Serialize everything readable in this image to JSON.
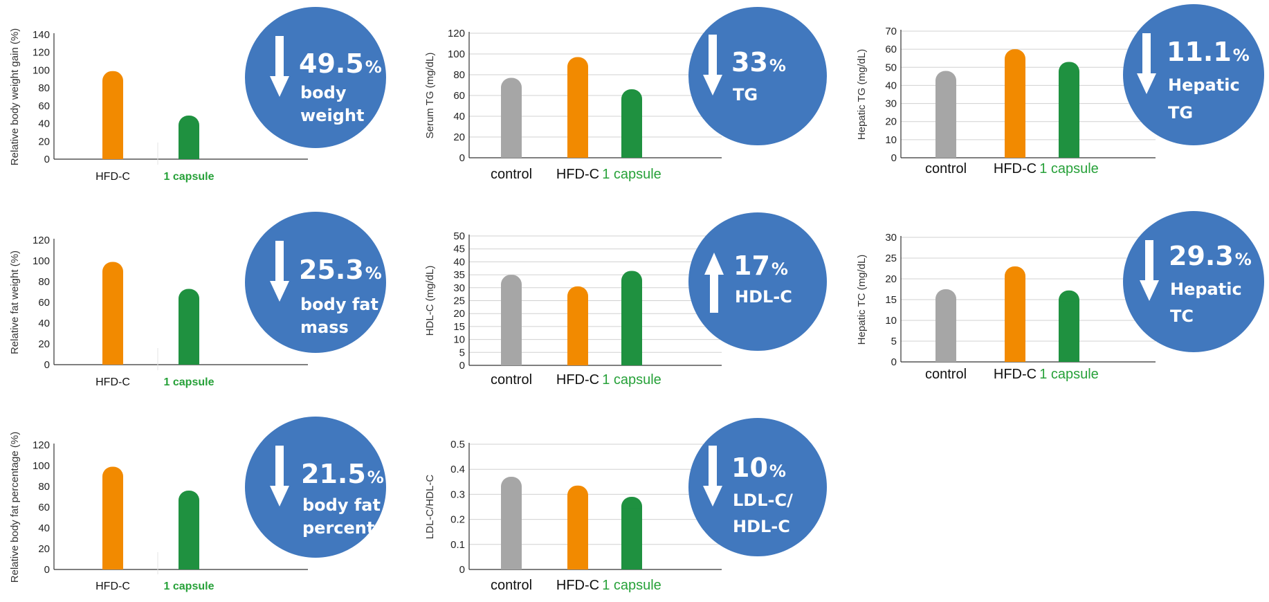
{
  "chart_data": [
    {
      "type": "bar",
      "categories": [
        "HFD-C",
        "1 capsule"
      ],
      "values": [
        99,
        49
      ],
      "ylabel": "Relative body weight gain (%)",
      "ylim": [
        0,
        140
      ],
      "yticks": [
        0,
        20,
        40,
        60,
        80,
        100,
        120,
        140
      ],
      "grid": false,
      "colors": [
        "#f28a00",
        "#1f9140"
      ],
      "badge": {
        "direction": "down",
        "value": "49.5",
        "unit": "%",
        "label": [
          "body",
          "weight"
        ]
      }
    },
    {
      "type": "bar",
      "categories": [
        "control",
        "HFD-C",
        "1 capsule"
      ],
      "values": [
        77,
        97,
        66
      ],
      "ylabel": "Serum TG (mg/dL)",
      "ylim": [
        0,
        120
      ],
      "yticks": [
        0,
        20,
        40,
        60,
        80,
        100,
        120
      ],
      "grid": true,
      "colors": [
        "#a6a6a6",
        "#f28a00",
        "#1f9140"
      ],
      "badge": {
        "direction": "down",
        "value": "33",
        "unit": "%",
        "label": [
          "TG"
        ]
      }
    },
    {
      "type": "bar",
      "categories": [
        "control",
        "HFD-C",
        "1 capsule"
      ],
      "values": [
        48,
        60,
        53
      ],
      "ylabel": "Hepatic TG (mg/dL)",
      "ylim": [
        0,
        70
      ],
      "yticks": [
        0,
        10,
        20,
        30,
        40,
        50,
        60,
        70
      ],
      "grid": true,
      "colors": [
        "#a6a6a6",
        "#f28a00",
        "#1f9140"
      ],
      "badge": {
        "direction": "down",
        "value": "11.1",
        "unit": "%",
        "label": [
          "Hepatic",
          "TG"
        ]
      }
    },
    {
      "type": "bar",
      "categories": [
        "HFD-C",
        "1 capsule"
      ],
      "values": [
        99,
        73
      ],
      "ylabel": "Relative fat weight (%)",
      "ylim": [
        0,
        120
      ],
      "yticks": [
        0,
        20,
        40,
        60,
        80,
        100,
        120
      ],
      "grid": false,
      "colors": [
        "#f28a00",
        "#1f9140"
      ],
      "badge": {
        "direction": "down",
        "value": "25.3",
        "unit": "%",
        "label": [
          "body fat",
          "mass"
        ]
      }
    },
    {
      "type": "bar",
      "categories": [
        "control",
        "HFD-C",
        "1 capsule"
      ],
      "values": [
        35,
        30.5,
        36.5
      ],
      "ylabel": "HDL-C (mg/dL)",
      "ylim": [
        0,
        50
      ],
      "yticks": [
        0,
        5,
        10,
        15,
        20,
        25,
        30,
        35,
        40,
        45,
        50
      ],
      "grid": true,
      "colors": [
        "#a6a6a6",
        "#f28a00",
        "#1f9140"
      ],
      "badge": {
        "direction": "up",
        "value": "17",
        "unit": "%",
        "label": [
          "HDL-C"
        ]
      }
    },
    {
      "type": "bar",
      "categories": [
        "control",
        "HFD-C",
        "1 capsule"
      ],
      "values": [
        17.5,
        23,
        17.2
      ],
      "ylabel": "Hepatic TC (mg/dL)",
      "ylim": [
        0,
        30
      ],
      "yticks": [
        0,
        5,
        10,
        15,
        20,
        25,
        30
      ],
      "grid": true,
      "colors": [
        "#a6a6a6",
        "#f28a00",
        "#1f9140"
      ],
      "badge": {
        "direction": "down",
        "value": "29.3",
        "unit": "%",
        "label": [
          "Hepatic",
          "TC"
        ]
      }
    },
    {
      "type": "bar",
      "categories": [
        "HFD-C",
        "1 capsule"
      ],
      "values": [
        99,
        76
      ],
      "ylabel": "Relative body fat percentage (%)",
      "ylim": [
        0,
        120
      ],
      "yticks": [
        0,
        20,
        40,
        60,
        80,
        100,
        120
      ],
      "grid": false,
      "colors": [
        "#f28a00",
        "#1f9140"
      ],
      "badge": {
        "direction": "down",
        "value": "21.5",
        "unit": "%",
        "label": [
          "body fat",
          "percentage"
        ]
      }
    },
    {
      "type": "bar",
      "categories": [
        "control",
        "HFD-C",
        "1 capsule"
      ],
      "values": [
        0.37,
        0.335,
        0.29
      ],
      "ylabel": "LDL-C/HDL-C",
      "ylim": [
        0,
        0.5
      ],
      "yticks": [
        0,
        0.1,
        0.2,
        0.3,
        0.4,
        0.5
      ],
      "grid": true,
      "colors": [
        "#a6a6a6",
        "#f28a00",
        "#1f9140"
      ],
      "badge": {
        "direction": "down",
        "value": "10",
        "unit": "%",
        "label": [
          "LDL-C/",
          "HDL-C"
        ]
      }
    }
  ],
  "colors": {
    "badge": "#4178be",
    "axis": "#333333",
    "grid": "#d0d0d0"
  }
}
